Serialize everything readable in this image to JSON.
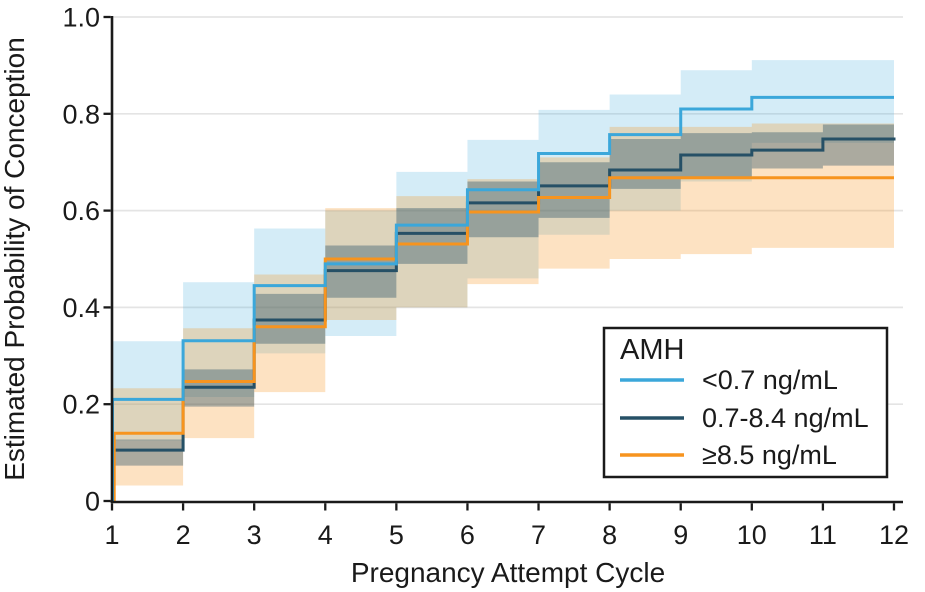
{
  "chart_data": {
    "type": "line",
    "subtype": "step-with-confidence-bands",
    "title": "",
    "xlabel": "Pregnancy Attempt Cycle",
    "ylabel": "Estimated Probability of Conception",
    "x": [
      1,
      2,
      3,
      4,
      5,
      6,
      7,
      8,
      9,
      10,
      11,
      12
    ],
    "x_tick_labels": [
      "1",
      "2",
      "3",
      "4",
      "5",
      "6",
      "7",
      "8",
      "9",
      "10",
      "11",
      "12"
    ],
    "y_ticks": [
      {
        "label": "0",
        "v": 0
      },
      {
        "label": "0.2",
        "v": 0.2
      },
      {
        "label": "0.4",
        "v": 0.4
      },
      {
        "label": "0.6",
        "v": 0.6
      },
      {
        "label": "0.8",
        "v": 0.8
      },
      {
        "label": "1.0",
        "v": 1.0
      }
    ],
    "xlim": [
      1,
      12
    ],
    "ylim": [
      0,
      1
    ],
    "grid": true,
    "legend_position": "lower right",
    "legend": {
      "title": "AMH"
    },
    "style": {
      "grid_color": "#E4E4E4",
      "axis_color": "#1A1A1A",
      "background": "#FFFFFF"
    },
    "series": [
      {
        "name": "<0.7 ng/mL",
        "color": "#3BA7DA",
        "band_color": "rgba(59,167,218,0.22)",
        "values": [
          0.21,
          0.331,
          0.445,
          0.49,
          0.57,
          0.643,
          0.718,
          0.757,
          0.81,
          0.834,
          0.834,
          0.834
        ],
        "ci_lower": [
          0.125,
          0.215,
          0.305,
          0.341,
          0.4,
          0.46,
          0.55,
          0.6,
          0.66,
          0.74,
          0.74,
          0.74
        ],
        "ci_upper": [
          0.33,
          0.452,
          0.563,
          0.6,
          0.68,
          0.746,
          0.808,
          0.84,
          0.89,
          0.911,
          0.911,
          0.911
        ]
      },
      {
        "name": "0.7-8.4 ng/mL",
        "color": "#265066",
        "band_color": "rgba(38,80,102,0.38)",
        "values": [
          0.105,
          0.235,
          0.374,
          0.476,
          0.553,
          0.616,
          0.651,
          0.684,
          0.715,
          0.725,
          0.748,
          0.751
        ],
        "ci_lower": [
          0.073,
          0.195,
          0.325,
          0.42,
          0.49,
          0.545,
          0.585,
          0.645,
          0.67,
          0.687,
          0.693,
          0.693
        ],
        "ci_upper": [
          0.127,
          0.272,
          0.428,
          0.528,
          0.605,
          0.66,
          0.7,
          0.748,
          0.76,
          0.762,
          0.778,
          0.778
        ]
      },
      {
        "name": "≥8.5 ng/mL",
        "color": "#F7941E",
        "band_color": "rgba(247,148,30,0.27)",
        "values": [
          0.14,
          0.247,
          0.36,
          0.5,
          0.531,
          0.597,
          0.627,
          0.668,
          0.668,
          0.668,
          0.668,
          0.668
        ],
        "ci_lower": [
          0.032,
          0.13,
          0.225,
          0.374,
          0.4,
          0.448,
          0.48,
          0.5,
          0.51,
          0.523,
          0.523,
          0.523
        ],
        "ci_upper": [
          0.233,
          0.357,
          0.468,
          0.605,
          0.63,
          0.665,
          0.71,
          0.773,
          0.773,
          0.78,
          0.78,
          0.78
        ]
      }
    ],
    "band_draw_order": [
      0,
      2,
      1
    ],
    "line_draw_order": [
      1,
      2,
      0
    ]
  }
}
